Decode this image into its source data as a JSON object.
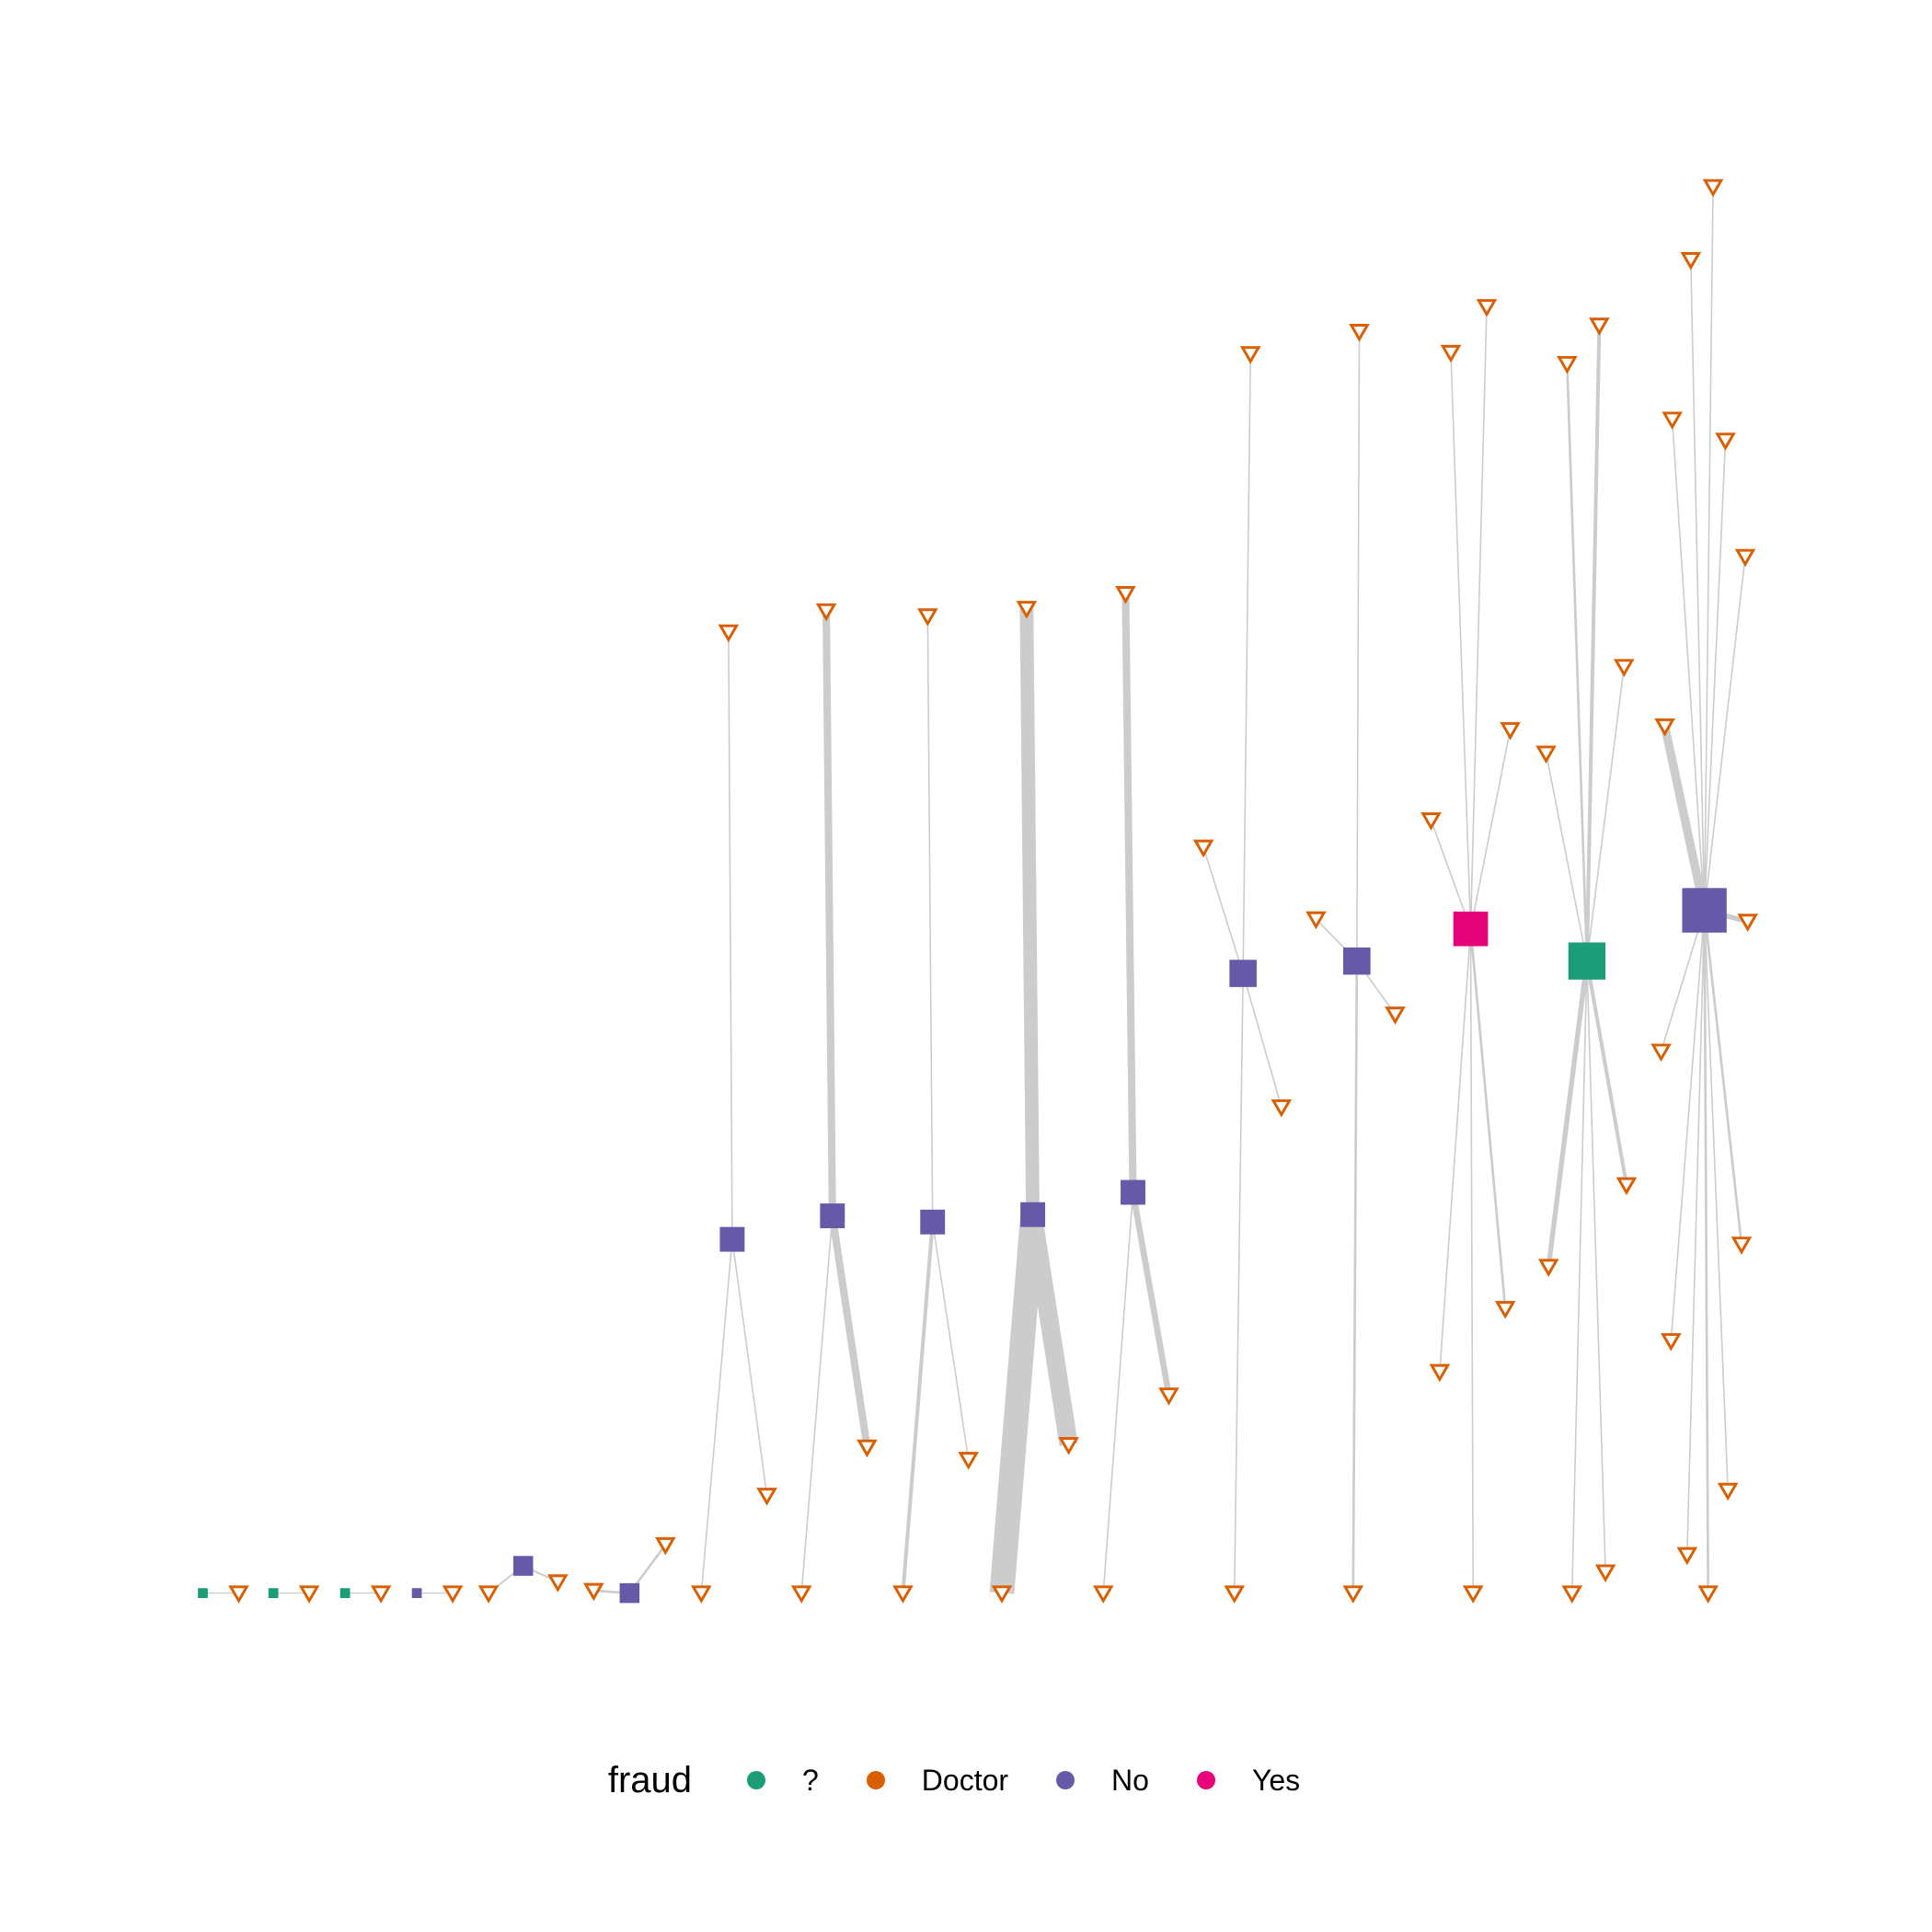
{
  "legend": {
    "title": "fraud",
    "items": [
      {
        "label": "?",
        "color": "#1b9e77"
      },
      {
        "label": "Doctor",
        "color": "#d95f02"
      },
      {
        "label": "No",
        "color": "#6659a8"
      },
      {
        "label": "Yes",
        "color": "#e7037a"
      }
    ]
  },
  "colors": {
    "edge": "#cccccc",
    "doctor_outline": "#d95f02",
    "unknown": "#1b9e77",
    "no": "#6659a8",
    "yes": "#e7037a"
  },
  "node_shapes": {
    "patient": "square",
    "doctor": "down-triangle-outline"
  }
}
